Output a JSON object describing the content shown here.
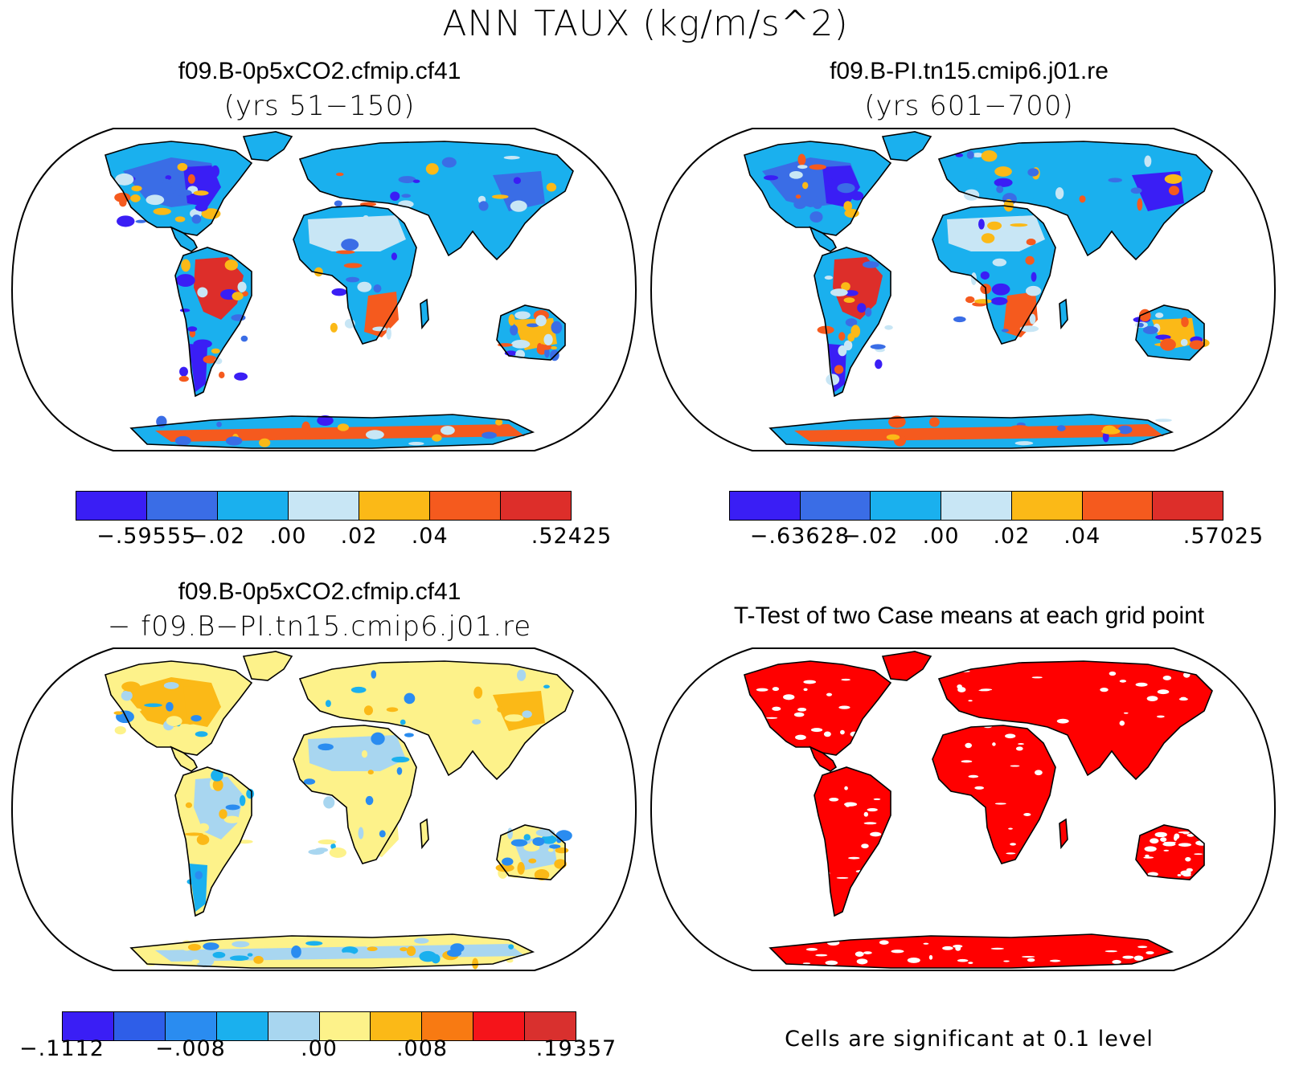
{
  "figure_title": "ANN TAUX (kg/m/s^2)",
  "panels": [
    {
      "title": "f09.B-0p5xCO2.cfmip.cf41",
      "subtitle": "(yrs 51−150)"
    },
    {
      "title": "f09.B-PI.tn15.cmip6.j01.re",
      "subtitle": "(yrs 601−700)"
    },
    {
      "title": "f09.B-0p5xCO2.cfmip.cf41",
      "subtitle": "− f09.B−PI.tn15.cmip6.j01.re"
    },
    {
      "title": "T-Test of two Case means at each grid point",
      "subtitle": ""
    }
  ],
  "colorbars": [
    {
      "colors": [
        "#3a1ef5",
        "#3a6de6",
        "#1ab0ee",
        "#c8e6f5",
        "#fbb917",
        "#f55a1e",
        "#dd2e2a"
      ],
      "tick_labels": [
        "−.59555",
        "−.02",
        ".00",
        ".02",
        ".04",
        ".52425"
      ],
      "tick_positions": [
        1,
        2,
        3,
        4,
        5,
        7
      ]
    },
    {
      "colors": [
        "#3a1ef5",
        "#3a6de6",
        "#1ab0ee",
        "#c8e6f5",
        "#fbb917",
        "#f55a1e",
        "#dd2e2a"
      ],
      "tick_labels": [
        "−.63628",
        "−.02",
        ".00",
        ".02",
        ".04",
        ".57025"
      ],
      "tick_positions": [
        1,
        2,
        3,
        4,
        5,
        7
      ]
    },
    {
      "colors": [
        "#3a1ef5",
        "#2e5ee8",
        "#2a8cf0",
        "#1ab0ee",
        "#a8d6f0",
        "#fdf28a",
        "#fbb917",
        "#f87a12",
        "#f5141a",
        "#d9302e"
      ],
      "tick_labels": [
        "−.1112",
        "−.008",
        ".00",
        ".008",
        ".19357"
      ],
      "tick_positions": [
        0,
        2.5,
        5,
        7,
        10
      ]
    }
  ],
  "ttest_note": "Cells are significant at 0.1 level",
  "chart_data": [
    {
      "type": "map",
      "projection": "robinson",
      "variable": "TAUX",
      "units": "kg/m/s^2",
      "title": "f09.B-0p5xCO2.cfmip.cf41",
      "years": "51-150",
      "contour_levels": [
        -0.02,
        0.0,
        0.02,
        0.04
      ],
      "min": -0.59555,
      "max": 0.52425
    },
    {
      "type": "map",
      "projection": "robinson",
      "variable": "TAUX",
      "units": "kg/m/s^2",
      "title": "f09.B-PI.tn15.cmip6.j01.re",
      "years": "601-700",
      "contour_levels": [
        -0.02,
        0.0,
        0.02,
        0.04
      ],
      "min": -0.63628,
      "max": 0.57025
    },
    {
      "type": "map",
      "projection": "robinson",
      "variable": "TAUX difference",
      "title": "f09.B-0p5xCO2.cfmip.cf41 - f09.B-PI.tn15.cmip6.j01.re",
      "contour_levels": [
        -0.008,
        0.0,
        0.008
      ],
      "min": -0.1112,
      "max": 0.19357
    },
    {
      "type": "map",
      "projection": "robinson",
      "title": "T-Test of two Case means at each grid point",
      "significance_level": 0.1,
      "color": "#ff0000"
    }
  ]
}
